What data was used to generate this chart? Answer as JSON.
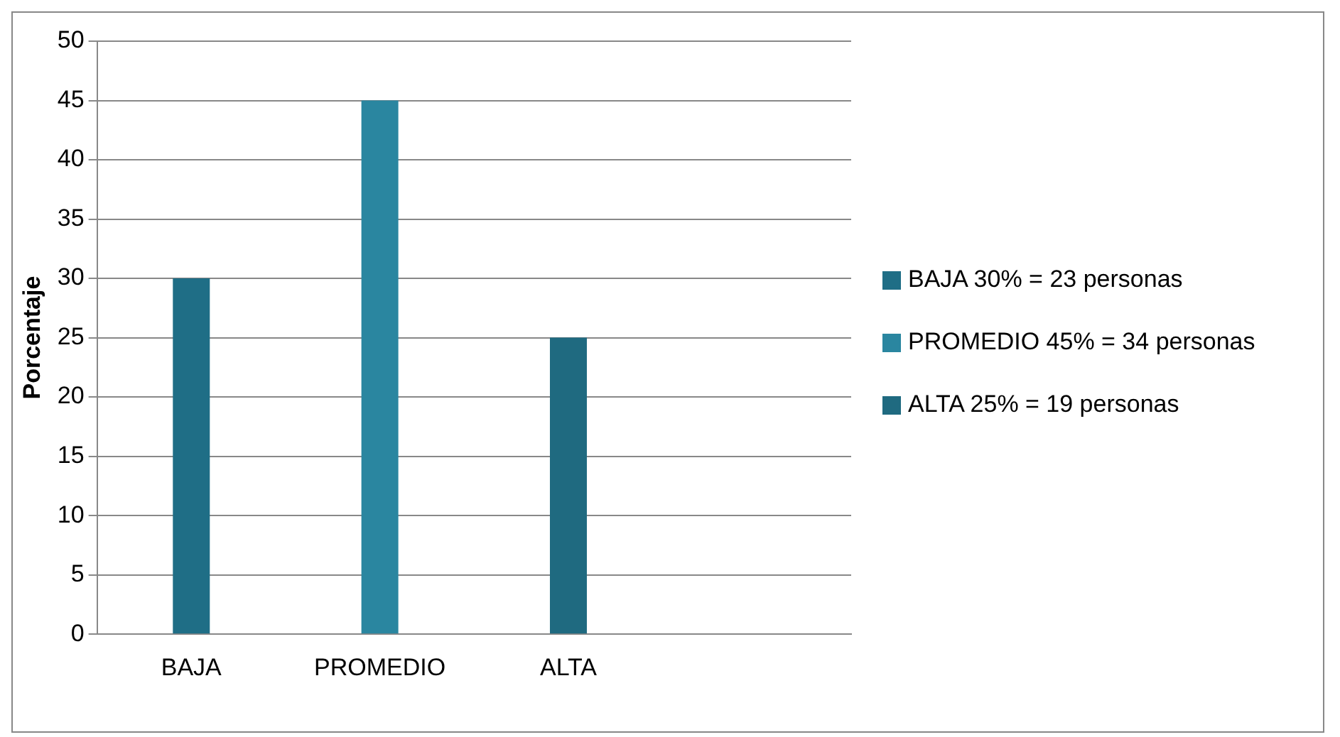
{
  "chart_data": {
    "type": "bar",
    "ylabel": "Porcentaje",
    "categories": [
      "BAJA",
      "PROMEDIO",
      "ALTA",
      null
    ],
    "series": [
      {
        "name": "BAJA 30% = 23 personas",
        "color": "#1f6e86",
        "values": [
          30,
          null,
          null,
          null
        ]
      },
      {
        "name": "PROMEDIO  45% = 34 personas",
        "color": "#2a86a0",
        "values": [
          null,
          45,
          null,
          null
        ]
      },
      {
        "name": "ALTA  25% = 19 personas",
        "color": "#1f6a80",
        "values": [
          null,
          null,
          25,
          null
        ]
      }
    ],
    "ylim": [
      0,
      50
    ],
    "yticks": [
      0,
      5,
      10,
      15,
      20,
      25,
      30,
      35,
      40,
      45,
      50
    ],
    "grid": "y",
    "legend": "right"
  }
}
